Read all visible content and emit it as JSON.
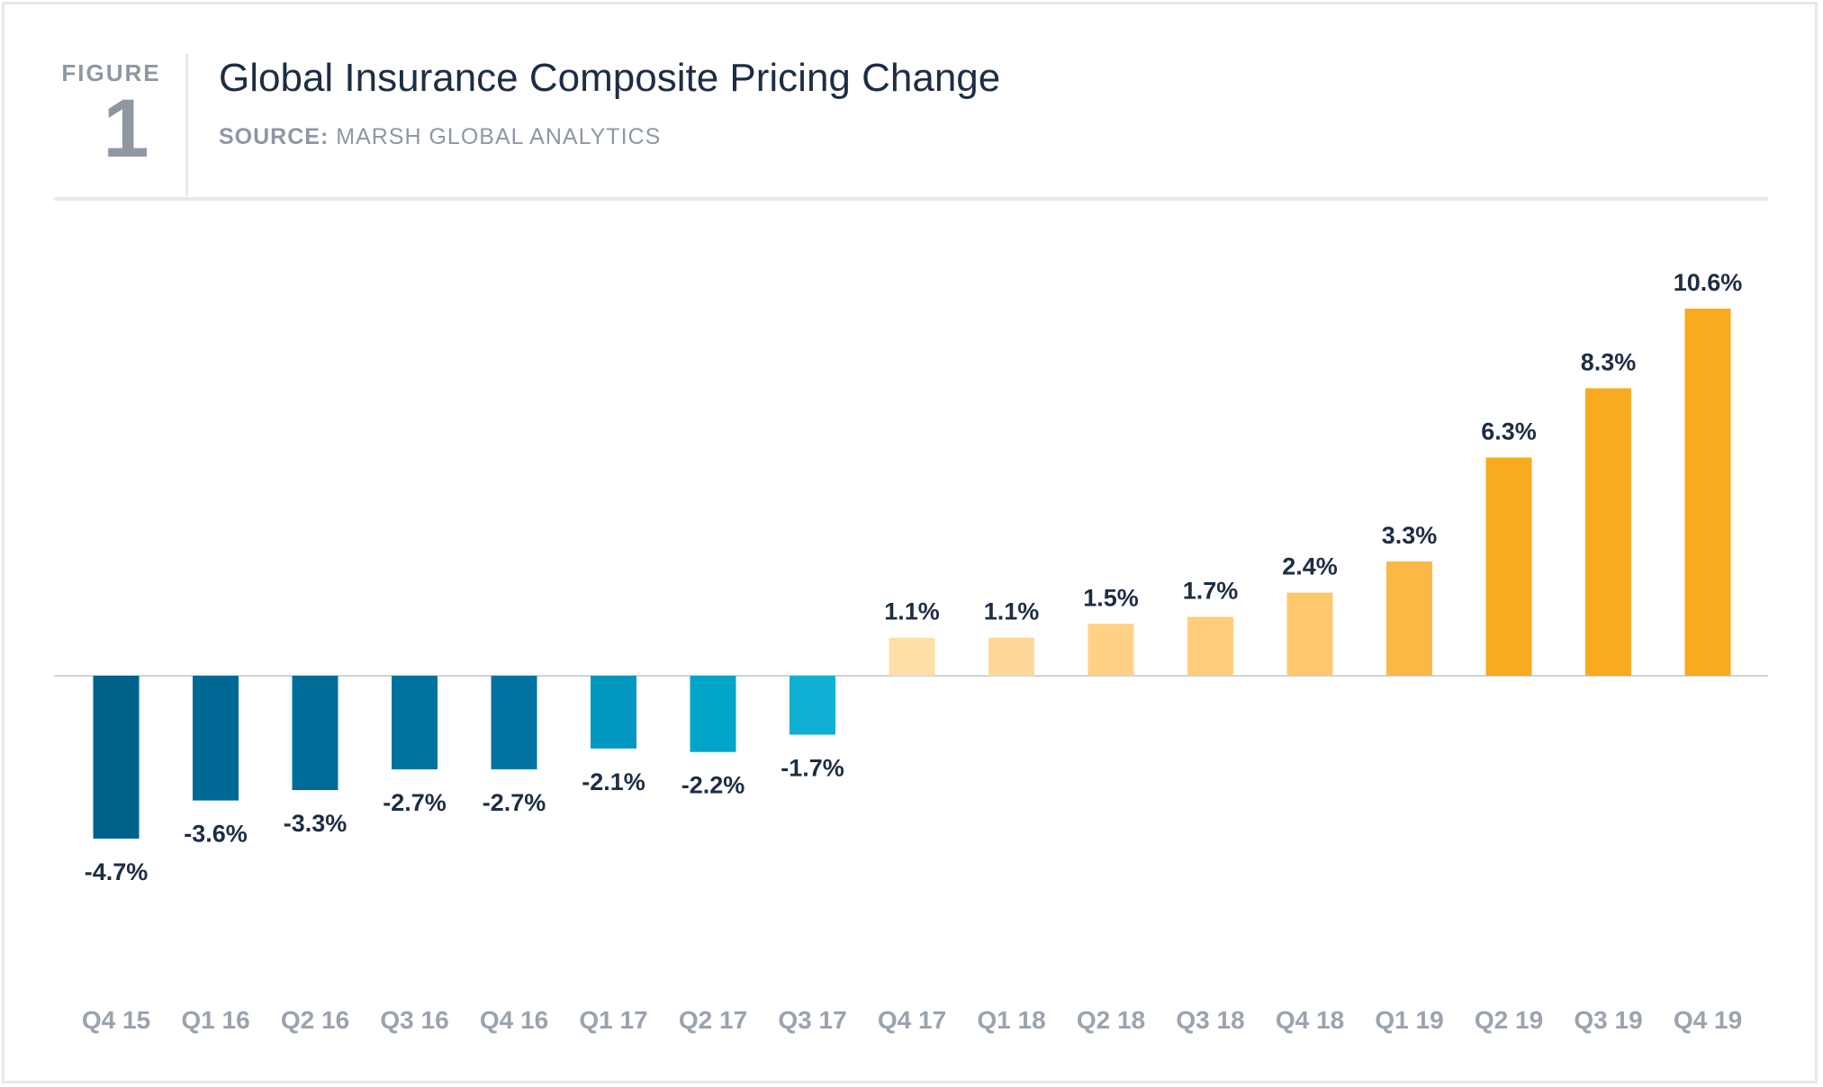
{
  "figure": {
    "label": "FIGURE",
    "number": "1"
  },
  "title": "Global Insurance Composite Pricing Change",
  "source": {
    "key": "SOURCE:",
    "value": "MARSH GLOBAL ANALYTICS"
  },
  "chart_data": {
    "type": "bar",
    "title": "Global Insurance Composite Pricing Change",
    "xlabel": "",
    "ylabel": "",
    "categories": [
      "Q4 15",
      "Q1 16",
      "Q2 16",
      "Q3 16",
      "Q4 16",
      "Q1 17",
      "Q2 17",
      "Q3 17",
      "Q4 17",
      "Q1 18",
      "Q2 18",
      "Q3 18",
      "Q4 18",
      "Q1 19",
      "Q2 19",
      "Q3 19",
      "Q4 19"
    ],
    "values": [
      -4.7,
      -3.6,
      -3.3,
      -2.7,
      -2.7,
      -2.1,
      -2.2,
      -1.7,
      1.1,
      1.1,
      1.5,
      1.7,
      2.4,
      3.3,
      6.3,
      8.3,
      10.6
    ],
    "data_labels": [
      "-4.7%",
      "-3.6%",
      "-3.3%",
      "-2.7%",
      "-2.7%",
      "-2.1%",
      "-2.2%",
      "-1.7%",
      "1.1%",
      "1.1%",
      "1.5%",
      "1.7%",
      "2.4%",
      "3.3%",
      "6.3%",
      "8.3%",
      "10.6%"
    ],
    "colors": [
      "#00618a",
      "#006894",
      "#006d99",
      "#00729e",
      "#0073a1",
      "#0098c0",
      "#00a5ca",
      "#0fb0d2",
      "#ffdfa8",
      "#ffd899",
      "#ffd185",
      "#ffcd7c",
      "#ffc86c",
      "#fab945",
      "#f8ab1f",
      "#f8ab1f",
      "#f8ab1f"
    ],
    "baseline_color": "#d0d4d9",
    "ylim": [
      -5.5,
      11.5
    ],
    "grid": false,
    "legend": "none"
  }
}
